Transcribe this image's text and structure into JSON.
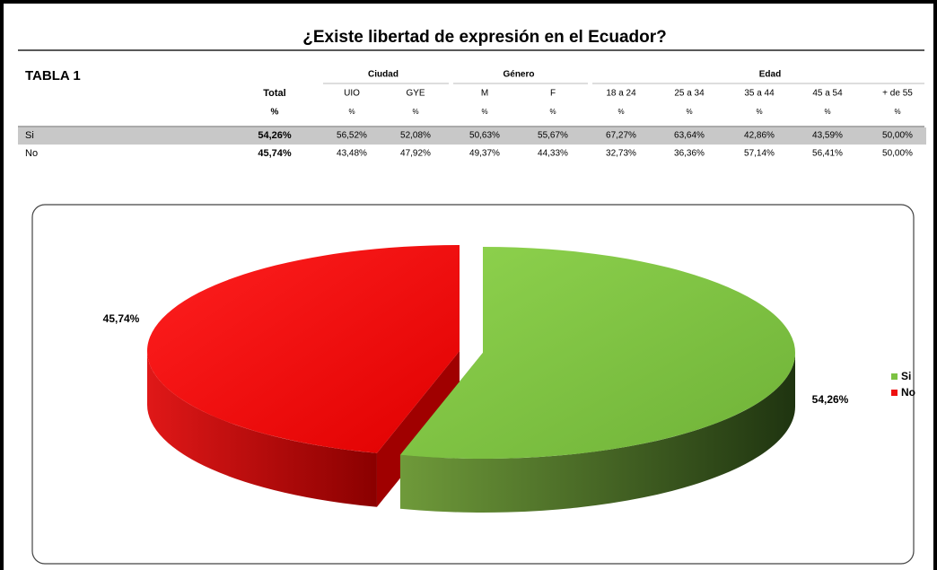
{
  "title": "¿Existe libertad de expresión en el Ecuador?",
  "table": {
    "name": "TABLA 1",
    "groups": [
      "Ciudad",
      "Género",
      "Edad"
    ],
    "columns": [
      "Total",
      "UIO",
      "GYE",
      "M",
      "F",
      "18 a 24",
      "25 a 34",
      "35 a 44",
      "45 a 54",
      "+ de 55"
    ],
    "units": [
      "%",
      "%",
      "%",
      "%",
      "%",
      "%",
      "%",
      "%",
      "%",
      "%"
    ],
    "rows": [
      [
        "Si",
        "54,26%",
        "56,52%",
        "52,08%",
        "50,63%",
        "55,67%",
        "67,27%",
        "63,64%",
        "42,86%",
        "43,59%",
        "50,00%"
      ],
      [
        "No",
        "45,74%",
        "43,48%",
        "47,92%",
        "49,37%",
        "44,33%",
        "32,73%",
        "36,36%",
        "57,14%",
        "56,41%",
        "50,00%"
      ]
    ]
  },
  "chart_data": {
    "type": "pie",
    "categories": [
      "Si",
      "No"
    ],
    "values": [
      54.26,
      45.74
    ],
    "value_labels": [
      "54,26%",
      "45,74%"
    ],
    "colors": [
      "#7cc242",
      "#ee1010"
    ],
    "legend": "right"
  }
}
